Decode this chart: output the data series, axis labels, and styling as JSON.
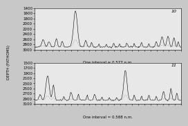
{
  "ylabel": "DEPTH (FATHOMS)",
  "subplot1_label": "10",
  "subplot2_label": "11",
  "subplot1_interval": "One interval = 0.577 n.m.",
  "subplot2_interval": "One interval = 0.588 n.m.",
  "subplot1_ylim": [
    3000,
    1400
  ],
  "subplot2_ylim": [
    3100,
    1500
  ],
  "subplot1_yticks": [
    1400,
    1600,
    1800,
    2000,
    2200,
    2400,
    2600,
    2800,
    3000
  ],
  "subplot2_yticks": [
    1500,
    1700,
    1900,
    2100,
    2300,
    2500,
    2700,
    2900,
    3100
  ],
  "bg_color": "#c8c8c8",
  "plot_bg": "#e8e8e8",
  "line_color": "#000000",
  "dash_color": "#aaaaaa",
  "font_size": 4,
  "label_fontsize": 4.5
}
